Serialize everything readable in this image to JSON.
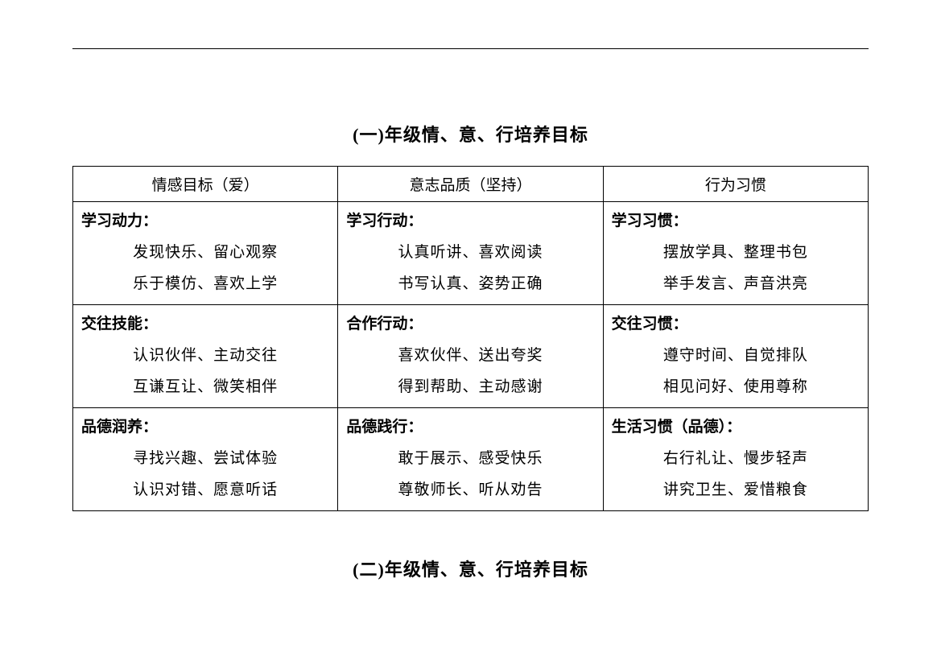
{
  "title1": "(一)年级情、意、行培养目标",
  "title2": "(二)年级情、意、行培养目标",
  "table1": {
    "headers": [
      "情感目标（爱）",
      "意志品质（坚持）",
      "行为习惯"
    ],
    "rows": [
      [
        {
          "header": "学习动力：",
          "lines": [
            "发现快乐、留心观察",
            "乐于模仿、喜欢上学"
          ]
        },
        {
          "header": "学习行动：",
          "lines": [
            "认真听讲、喜欢阅读",
            "书写认真、姿势正确"
          ]
        },
        {
          "header": "学习习惯：",
          "lines": [
            "摆放学具、整理书包",
            "举手发言、声音洪亮"
          ]
        }
      ],
      [
        {
          "header": "交往技能：",
          "lines": [
            "认识伙伴、主动交往",
            "互谦互让、微笑相伴"
          ]
        },
        {
          "header": "合作行动：",
          "lines": [
            "喜欢伙伴、送出夸奖",
            "得到帮助、主动感谢"
          ]
        },
        {
          "header": "交往习惯：",
          "lines": [
            "遵守时间、自觉排队",
            "相见问好、使用尊称"
          ]
        }
      ],
      [
        {
          "header": "品德润养：",
          "lines": [
            "寻找兴趣、尝试体验",
            "认识对错、愿意听话"
          ]
        },
        {
          "header": "品德践行：",
          "lines": [
            "敢于展示、感受快乐",
            "尊敬师长、听从劝告"
          ]
        },
        {
          "header": "生活习惯（品德）：",
          "lines": [
            "右行礼让、慢步轻声",
            "讲究卫生、爱惜粮食"
          ]
        }
      ]
    ]
  }
}
